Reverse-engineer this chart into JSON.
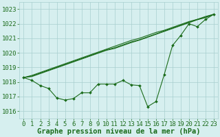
{
  "x_hours": [
    0,
    1,
    2,
    3,
    4,
    5,
    6,
    7,
    8,
    9,
    10,
    11,
    12,
    13,
    14,
    15,
    16,
    17,
    18,
    19,
    20,
    21,
    22,
    23
  ],
  "line_actual": [
    1018.3,
    1018.1,
    1017.75,
    1017.55,
    1016.9,
    1016.75,
    1016.85,
    1017.25,
    1017.25,
    1017.85,
    1017.85,
    1017.85,
    1018.1,
    1017.8,
    1017.75,
    1016.3,
    1016.65,
    1018.5,
    1020.5,
    1021.2,
    1022.0,
    1021.8,
    1022.3,
    1022.65
  ],
  "line_trend1": [
    1018.3,
    1018.4,
    1018.6,
    1018.8,
    1019.0,
    1019.2,
    1019.4,
    1019.6,
    1019.8,
    1020.0,
    1020.2,
    1020.35,
    1020.55,
    1020.75,
    1020.9,
    1021.1,
    1021.3,
    1021.5,
    1021.7,
    1021.9,
    1022.1,
    1022.3,
    1022.45,
    1022.65
  ],
  "line_trend2": [
    1018.3,
    1018.45,
    1018.65,
    1018.85,
    1019.05,
    1019.25,
    1019.45,
    1019.65,
    1019.85,
    1020.05,
    1020.25,
    1020.45,
    1020.65,
    1020.85,
    1021.0,
    1021.2,
    1021.4,
    1021.55,
    1021.75,
    1021.95,
    1022.15,
    1022.3,
    1022.5,
    1022.65
  ],
  "line_trend3": [
    1018.3,
    1018.37,
    1018.57,
    1018.77,
    1018.97,
    1019.17,
    1019.37,
    1019.57,
    1019.77,
    1019.97,
    1020.17,
    1020.3,
    1020.5,
    1020.7,
    1020.87,
    1021.07,
    1021.27,
    1021.47,
    1021.67,
    1021.87,
    1022.07,
    1022.27,
    1022.42,
    1022.65
  ],
  "bg_color": "#d6efef",
  "grid_color": "#a8cece",
  "line_color": "#1a6b1a",
  "ylim_min": 1015.5,
  "ylim_max": 1023.5,
  "xlim_min": -0.5,
  "xlim_max": 23.5,
  "yticks": [
    1016,
    1017,
    1018,
    1019,
    1020,
    1021,
    1022,
    1023
  ],
  "xtick_labels": [
    "0",
    "1",
    "2",
    "3",
    "4",
    "5",
    "6",
    "7",
    "8",
    "9",
    "10",
    "11",
    "12",
    "13",
    "14",
    "15",
    "16",
    "17",
    "18",
    "19",
    "20",
    "21",
    "22",
    "23"
  ],
  "xlabel": "Graphe pression niveau de la mer (hPa)",
  "xlabel_fontsize": 7.5,
  "tick_fontsize": 6.5
}
